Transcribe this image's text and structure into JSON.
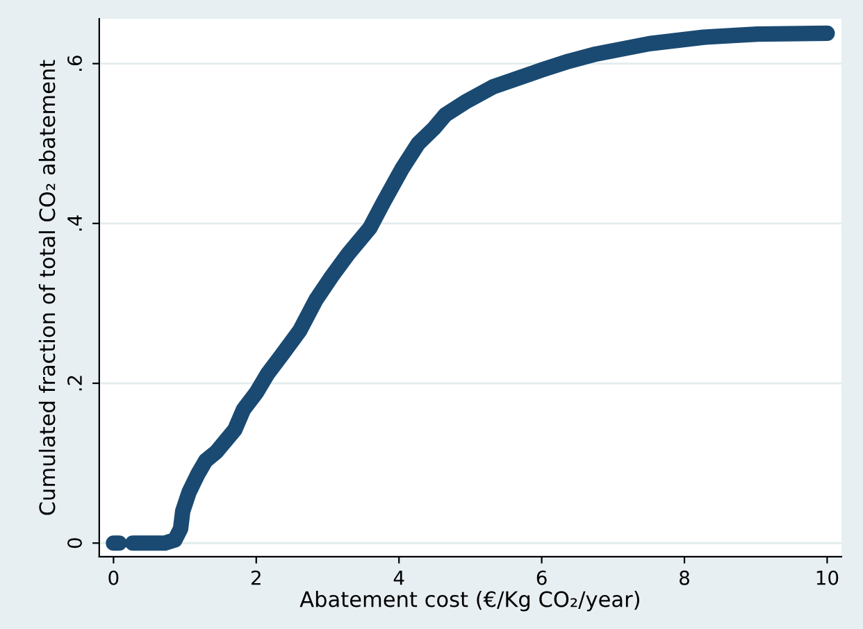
{
  "chart_data": {
    "type": "line",
    "xlabel": "Abatement cost (€/Kg CO₂/year)",
    "ylabel": "Cumulated fraction of total CO₂ abatement",
    "x": [
      0,
      0.08,
      0.17,
      0.27,
      0.72,
      0.86,
      0.94,
      0.97,
      1.06,
      1.18,
      1.29,
      1.44,
      1.7,
      1.82,
      2.0,
      2.16,
      2.38,
      2.61,
      2.84,
      3.06,
      3.29,
      3.59,
      3.78,
      4.04,
      4.27,
      4.49,
      4.65,
      4.95,
      5.32,
      6.0,
      6.38,
      6.76,
      7.51,
      8.27,
      9.02,
      10
    ],
    "series": [
      {
        "color": "#1a4a72",
        "values": [
          0,
          0,
          null,
          0,
          0,
          0.004,
          0.018,
          0.04,
          0.064,
          0.086,
          0.103,
          0.114,
          0.142,
          0.167,
          0.188,
          0.212,
          0.238,
          0.266,
          0.305,
          0.334,
          0.362,
          0.394,
          0.426,
          0.468,
          0.5,
          0.519,
          0.536,
          0.553,
          0.571,
          0.592,
          0.603,
          0.612,
          0.625,
          0.633,
          0.637,
          0.638
        ]
      }
    ],
    "xlim": [
      -0.2,
      10.2
    ],
    "ylim": [
      -0.017,
      0.656
    ],
    "xticks": [
      0,
      2,
      4,
      6,
      8,
      10
    ],
    "yticks": [
      0,
      {
        "value": 0.2,
        "label": ".2"
      },
      {
        "value": 0.4,
        "label": ".4"
      },
      {
        "value": 0.6,
        "label": ".6"
      }
    ],
    "grid": "y",
    "line_style": "solid"
  }
}
